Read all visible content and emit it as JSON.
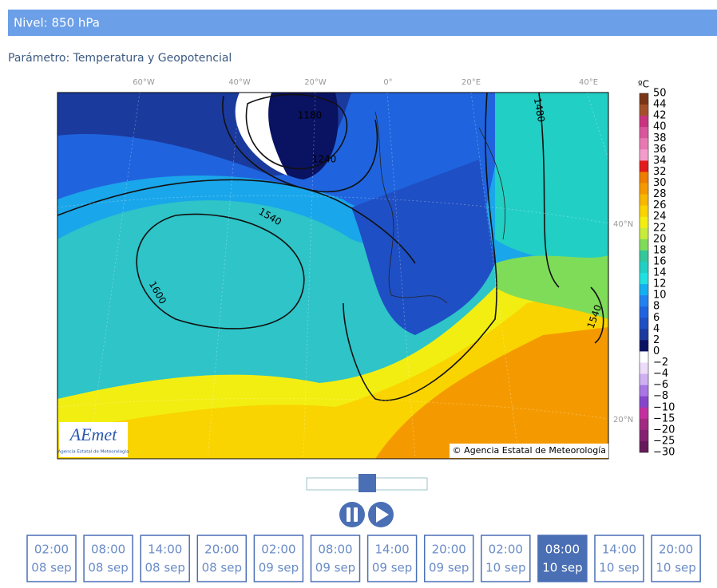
{
  "header": {
    "title": "Nivel: 850 hPa"
  },
  "parameter": "Parámetro: Temperatura y Geopotencial",
  "map": {
    "lon_labels": [
      "60°W",
      "40°W",
      "20°W",
      "0°",
      "20°E",
      "40°E"
    ],
    "lat_labels": [
      "40°N",
      "20°N"
    ],
    "contour_labels": [
      "1180",
      "1240",
      "1480",
      "1540",
      "1600",
      "1540"
    ],
    "logo": "AEmet",
    "logo_subtitle": "Agencia Estatal de Meteorología",
    "copyright": "© Agencia Estatal de Meteorología"
  },
  "colorbar": {
    "unit": "ºC",
    "labels": [
      "50",
      "44",
      "42",
      "40",
      "38",
      "36",
      "34",
      "32",
      "30",
      "28",
      "26",
      "24",
      "22",
      "20",
      "18",
      "16",
      "14",
      "12",
      "10",
      "8",
      "6",
      "4",
      "2",
      "0",
      "−2",
      "−4",
      "−6",
      "−8",
      "−10",
      "−15",
      "−20",
      "−25",
      "−30"
    ],
    "colors": [
      "#7b3517",
      "#a3502a",
      "#c8327e",
      "#d9559b",
      "#e878b2",
      "#f39ccb",
      "#e31b1b",
      "#ef7d00",
      "#f49a00",
      "#f8b700",
      "#f9d400",
      "#f2ee12",
      "#c7ec3c",
      "#7fdc58",
      "#34c79a",
      "#22cfc4",
      "#22e0e0",
      "#14aff0",
      "#2282f0",
      "#1f63df",
      "#1f4fc4",
      "#1b3a9e",
      "#0a1262",
      "#ffffff",
      "#ecdcf9",
      "#cfb0f2",
      "#a877e3",
      "#8546cb",
      "#c42f9f",
      "#a12a83",
      "#832170",
      "#661a5a"
    ]
  },
  "timeline": [
    {
      "time": "02:00",
      "date": "08 sep"
    },
    {
      "time": "08:00",
      "date": "08 sep"
    },
    {
      "time": "14:00",
      "date": "08 sep"
    },
    {
      "time": "20:00",
      "date": "08 sep"
    },
    {
      "time": "02:00",
      "date": "09 sep"
    },
    {
      "time": "08:00",
      "date": "09 sep"
    },
    {
      "time": "14:00",
      "date": "09 sep"
    },
    {
      "time": "20:00",
      "date": "09 sep"
    },
    {
      "time": "02:00",
      "date": "10 sep"
    },
    {
      "time": "08:00",
      "date": "10 sep"
    },
    {
      "time": "14:00",
      "date": "10 sep"
    },
    {
      "time": "20:00",
      "date": "10 sep"
    }
  ]
}
